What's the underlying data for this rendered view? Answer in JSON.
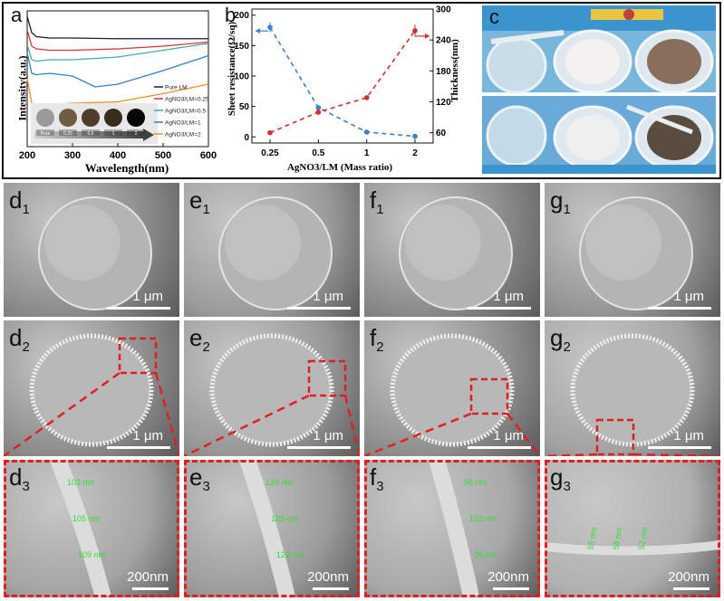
{
  "panel_a": {
    "letter": "a",
    "ylabel": "Intensity(a.u.)",
    "xlabel": "Wavelength(nm)",
    "xticks": [
      "200",
      "300",
      "400",
      "500",
      "600"
    ],
    "legend": [
      "Pure LM",
      "AgNO3/LM=0.25",
      "AgNO3/LM=0.5",
      "AgNO3/LM=1",
      "AgNO3/LM=2"
    ],
    "series_colors": [
      "#1a1a3a",
      "#e03030",
      "#40b0a0",
      "#3080d0",
      "#f09020"
    ],
    "swatch_labels": [
      "Pure",
      "0.25",
      "0.5",
      "1",
      "2"
    ],
    "swatch_colors": [
      "#9a9a9a",
      "#6e5c45",
      "#4e3d28",
      "#3a2c1c",
      "#050505"
    ]
  },
  "panel_b": {
    "letter": "b",
    "ylabel_left": "Sheet resistance(Ω/sq)",
    "ylabel_right": "Thickness(nm)",
    "xlabel": "AgNO3/LM (Mass ratio)",
    "left_ticks": [
      "0",
      "50",
      "100",
      "150",
      "200"
    ],
    "right_ticks": [
      "60",
      "120",
      "180",
      "240",
      "300"
    ],
    "x_ticks": [
      "0.25",
      "0.5",
      "1",
      "2"
    ]
  },
  "panel_c": {
    "letter": "c"
  },
  "chart_data": [
    {
      "type": "line",
      "title": "",
      "xlabel": "Wavelength(nm)",
      "ylabel": "Intensity(a.u.)",
      "xlim": [
        200,
        600
      ],
      "series": [
        {
          "name": "Pure LM",
          "x": [
            200,
            210,
            220,
            250,
            300,
            400,
            500,
            600
          ],
          "values": [
            9.6,
            8.4,
            8.1,
            8.0,
            8.0,
            7.95,
            7.95,
            7.95
          ]
        },
        {
          "name": "AgNO3/LM=0.25",
          "x": [
            200,
            210,
            220,
            250,
            300,
            400,
            500,
            600
          ],
          "values": [
            8.6,
            7.4,
            7.2,
            7.1,
            7.1,
            7.2,
            7.4,
            7.7
          ]
        },
        {
          "name": "AgNO3/LM=0.5",
          "x": [
            200,
            210,
            220,
            250,
            300,
            400,
            500,
            600
          ],
          "values": [
            7.5,
            6.4,
            6.3,
            6.4,
            6.4,
            6.6,
            7.1,
            7.6
          ]
        },
        {
          "name": "AgNO3/LM=1",
          "x": [
            200,
            210,
            220,
            250,
            300,
            350,
            400,
            500,
            600
          ],
          "values": [
            6.9,
            5.4,
            5.3,
            5.4,
            5.2,
            4.4,
            4.6,
            5.6,
            6.7
          ]
        },
        {
          "name": "AgNO3/LM=2",
          "x": [
            200,
            210,
            220,
            250,
            300,
            400,
            500,
            600
          ],
          "values": [
            5.0,
            3.2,
            3.0,
            3.1,
            3.2,
            3.3,
            3.9,
            4.6
          ]
        }
      ]
    },
    {
      "type": "line",
      "title": "",
      "xlabel": "AgNO3/LM (Mass ratio)",
      "ylabel": "Sheet resistance(Ω/sq)",
      "ylabel_right": "Thickness(nm)",
      "categories": [
        "0.25",
        "0.5",
        "1",
        "2"
      ],
      "ylim": [
        -10,
        210
      ],
      "ylim_right": [
        40,
        300
      ],
      "series": [
        {
          "name": "Sheet resistance",
          "axis": "left",
          "color": "#3a7fd0",
          "values": [
            180,
            48,
            8,
            1
          ],
          "errors": [
            8,
            3,
            3,
            1
          ]
        },
        {
          "name": "Thickness",
          "axis": "right",
          "color": "#d03030",
          "values": [
            60,
            100,
            128,
            258
          ],
          "errors": [
            2,
            6,
            3,
            12
          ]
        }
      ]
    }
  ],
  "sem": {
    "row1": [
      {
        "letter": "d",
        "sub": "1",
        "scale": "1 μm"
      },
      {
        "letter": "e",
        "sub": "1",
        "scale": "1 μm"
      },
      {
        "letter": "f",
        "sub": "1",
        "scale": "1 μm"
      },
      {
        "letter": "g",
        "sub": "1",
        "scale": "1 μm"
      }
    ],
    "row2": [
      {
        "letter": "d",
        "sub": "2",
        "scale": "1 μm"
      },
      {
        "letter": "e",
        "sub": "2",
        "scale": "1 μm"
      },
      {
        "letter": "f",
        "sub": "2",
        "scale": "1 μm"
      },
      {
        "letter": "g",
        "sub": "2",
        "scale": "1 μm"
      }
    ],
    "row3": [
      {
        "letter": "d",
        "sub": "3",
        "scale": "200nm",
        "labels": [
          "103 nm",
          "105 nm",
          "109 nm"
        ]
      },
      {
        "letter": "e",
        "sub": "3",
        "scale": "200nm",
        "labels": [
          "129 nm",
          "128 nm",
          "122 nm"
        ]
      },
      {
        "letter": "f",
        "sub": "3",
        "scale": "200nm",
        "labels": [
          "96 nm",
          "102 nm",
          "95 nm"
        ]
      },
      {
        "letter": "g",
        "sub": "3",
        "scale": "200nm",
        "labels": [
          "55 nm",
          "58 nm",
          "52 nm"
        ]
      }
    ]
  }
}
